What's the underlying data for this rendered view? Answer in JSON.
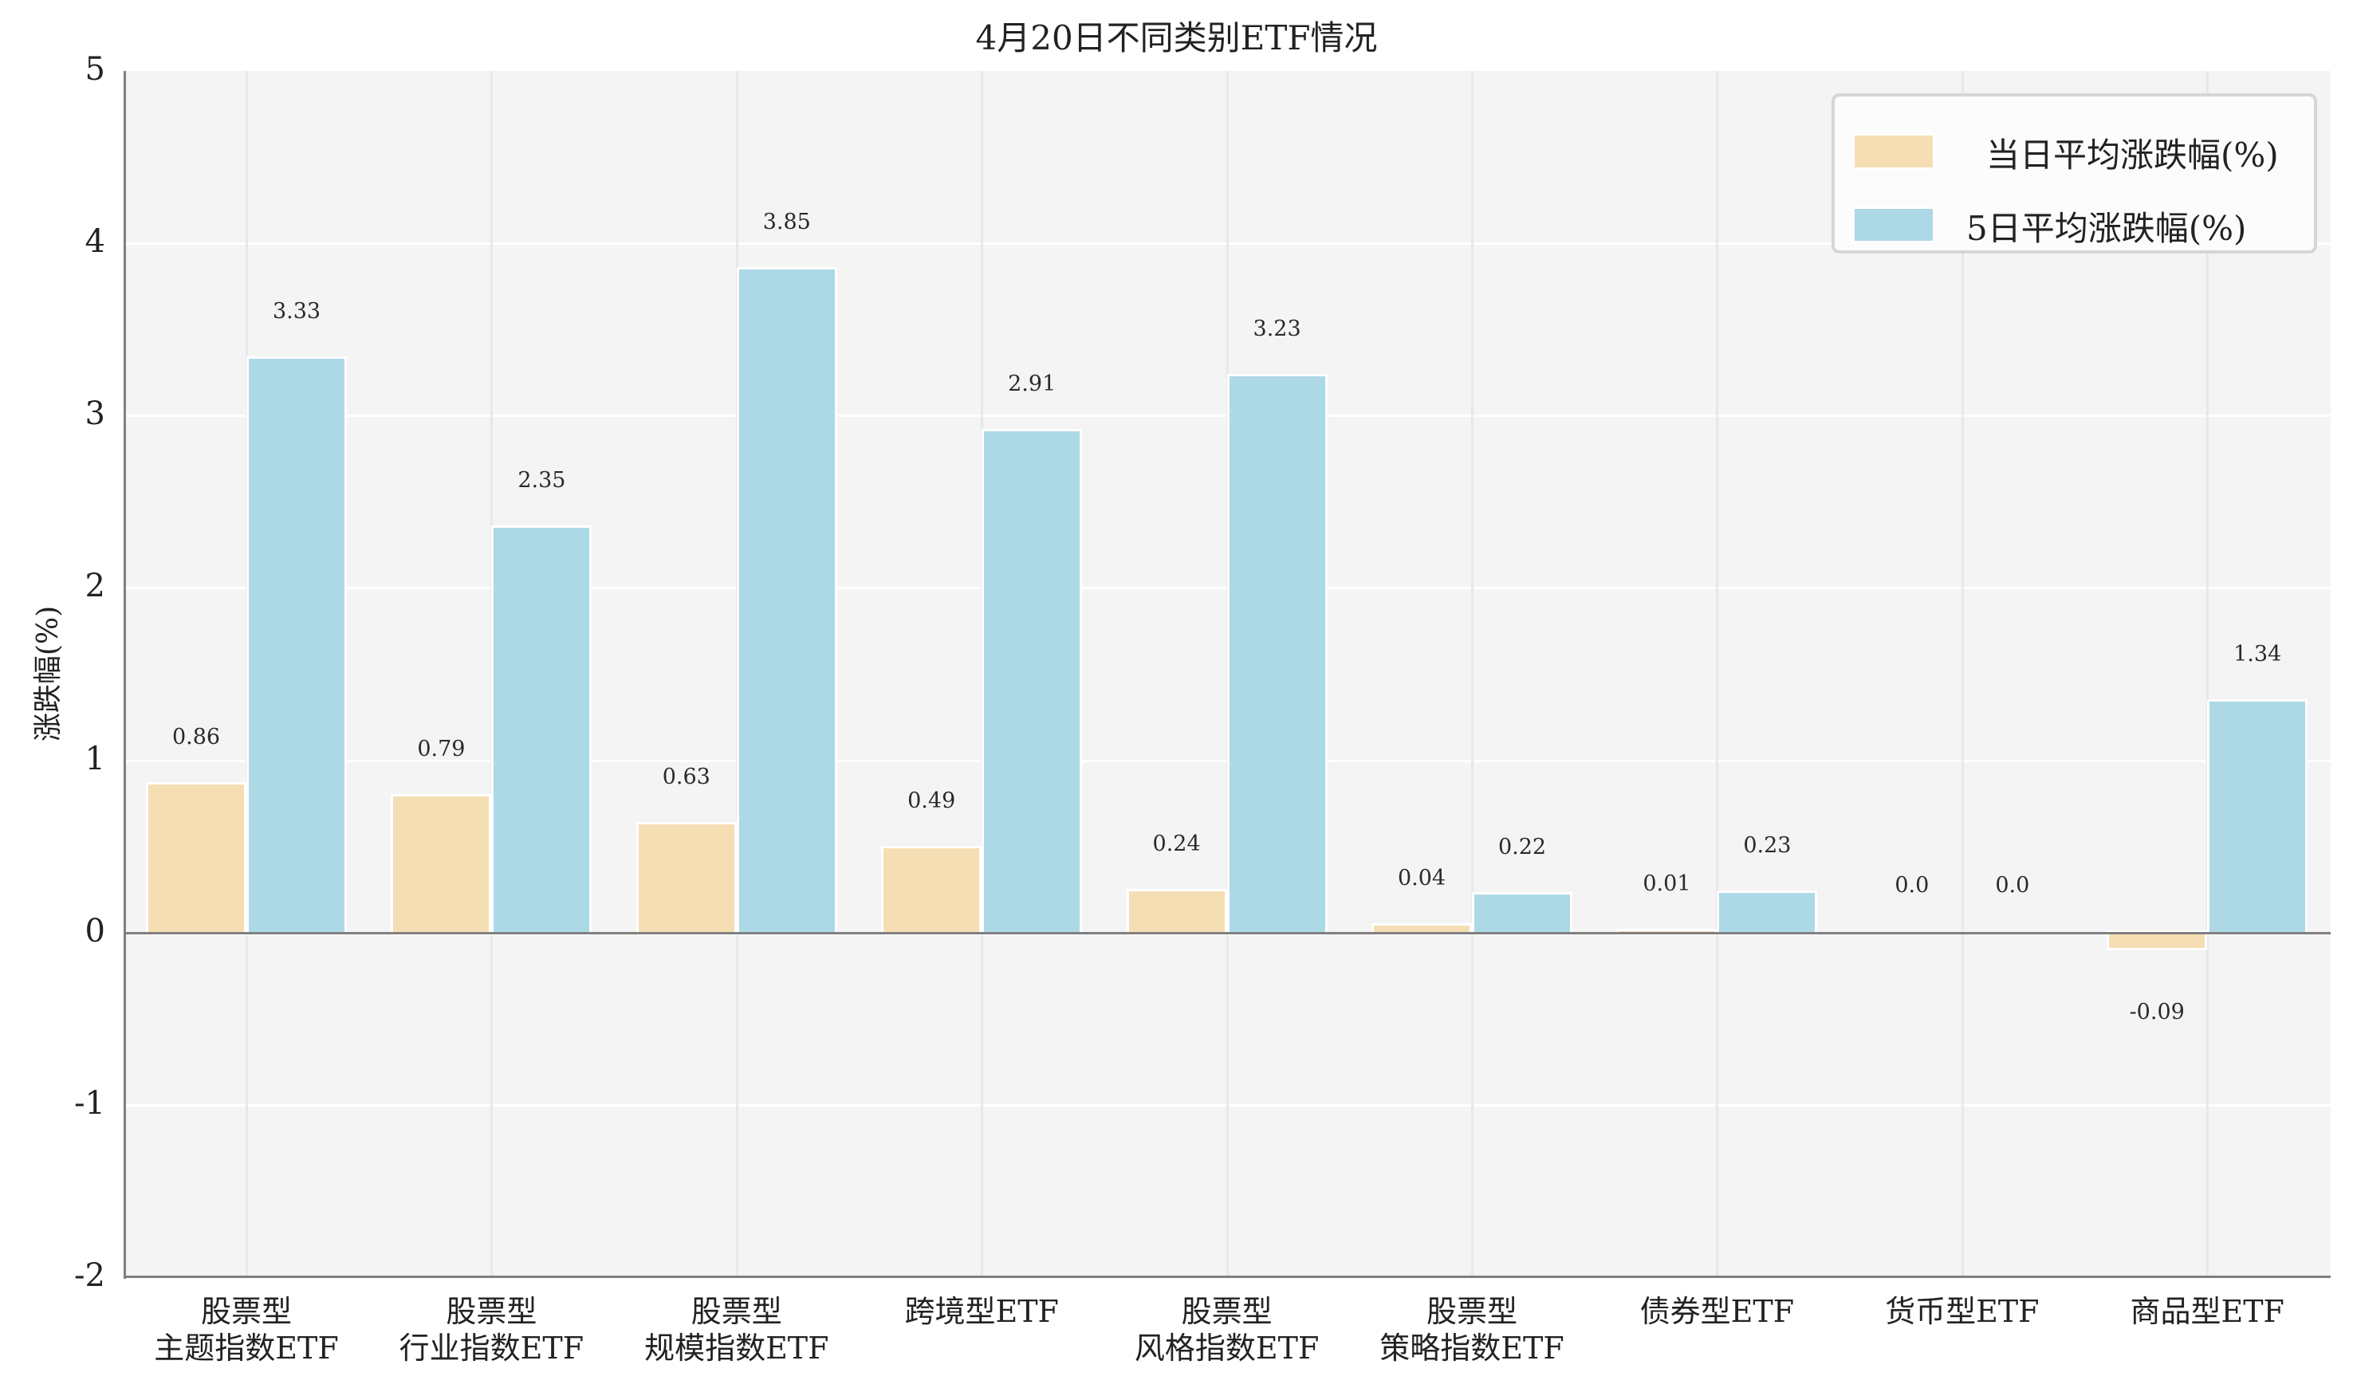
{
  "chart_data": {
    "type": "bar",
    "title": "4月20日不同类别ETF情况",
    "xlabel": "",
    "ylabel": "涨跌幅(%)",
    "ylim": [
      -2,
      5
    ],
    "yticks": [
      "5",
      "4",
      "3",
      "2",
      "1",
      "0",
      "-1",
      "-2"
    ],
    "grid": true,
    "legend_position": "upper right",
    "categories": [
      [
        "股票型",
        "主题指数ETF"
      ],
      [
        "股票型",
        "行业指数ETF"
      ],
      [
        "股票型",
        "规模指数ETF"
      ],
      [
        "跨境型ETF"
      ],
      [
        "股票型",
        "风格指数ETF"
      ],
      [
        "股票型",
        "策略指数ETF"
      ],
      [
        "债券型ETF"
      ],
      [
        "货币型ETF"
      ],
      [
        "商品型ETF"
      ]
    ],
    "series": [
      {
        "name": "当日平均涨跌幅(%)",
        "color": "#f5deb3",
        "values": [
          0.86,
          0.79,
          0.63,
          0.49,
          0.24,
          0.04,
          0.01,
          0.0,
          -0.09
        ],
        "labels": [
          "0.86",
          "0.79",
          "0.63",
          "0.49",
          "0.24",
          "0.04",
          "0.01",
          "0.0",
          "-0.09"
        ]
      },
      {
        "name": "5日平均涨跌幅(%)",
        "color": "#add8e6",
        "values": [
          3.33,
          2.35,
          3.85,
          2.91,
          3.23,
          0.22,
          0.23,
          0.0,
          1.34
        ],
        "labels": [
          "3.33",
          "2.35",
          "3.85",
          "2.91",
          "3.23",
          "0.22",
          "0.23",
          "0.0",
          "1.34"
        ]
      }
    ]
  },
  "legend": {
    "items": [
      {
        "label": "当日平均涨跌幅(%)",
        "color": "#f5deb3"
      },
      {
        "label": "5日平均涨跌幅(%)",
        "color": "#add8e6"
      }
    ]
  }
}
